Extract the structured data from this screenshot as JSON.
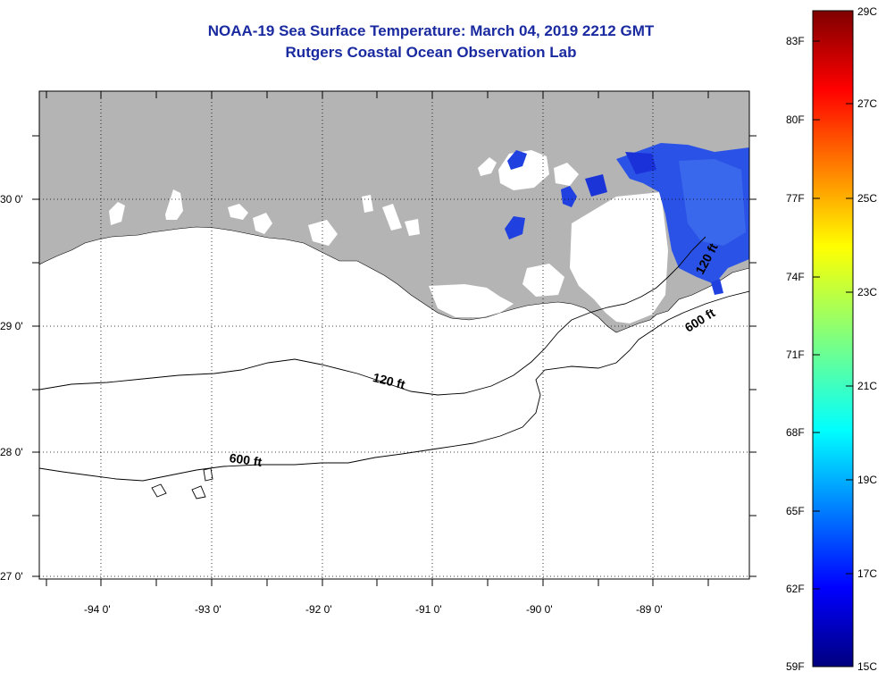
{
  "header": {
    "title": "NOAA-19 Sea Surface Temperature:  March 04, 2019 2212 GMT",
    "subtitle": "Rutgers Coastal Ocean Observation Lab"
  },
  "map": {
    "lat_labels": [
      "30 0'",
      "29 0'",
      "28 0'",
      "27 0'"
    ],
    "lon_labels": [
      "-94 0'",
      "-93 0'",
      "-92 0'",
      "-91 0'",
      "-90 0'",
      "-89 0'"
    ],
    "contour_labels": [
      "120 ft",
      "600 ft",
      "120 ft",
      "600 ft"
    ],
    "land_color": "#b4b4b4",
    "ocean_color": "#ffffff",
    "sst_color": "#2040e0"
  },
  "colorbar": {
    "fahrenheit_labels": [
      "83F",
      "80F",
      "77F",
      "74F",
      "71F",
      "68F",
      "65F",
      "62F",
      "59F"
    ],
    "celsius_labels": [
      "29C",
      "27C",
      "25C",
      "23C",
      "21C",
      "19C",
      "17C",
      "15C"
    ],
    "min_color": "#00007f",
    "max_color": "#7f0000"
  }
}
